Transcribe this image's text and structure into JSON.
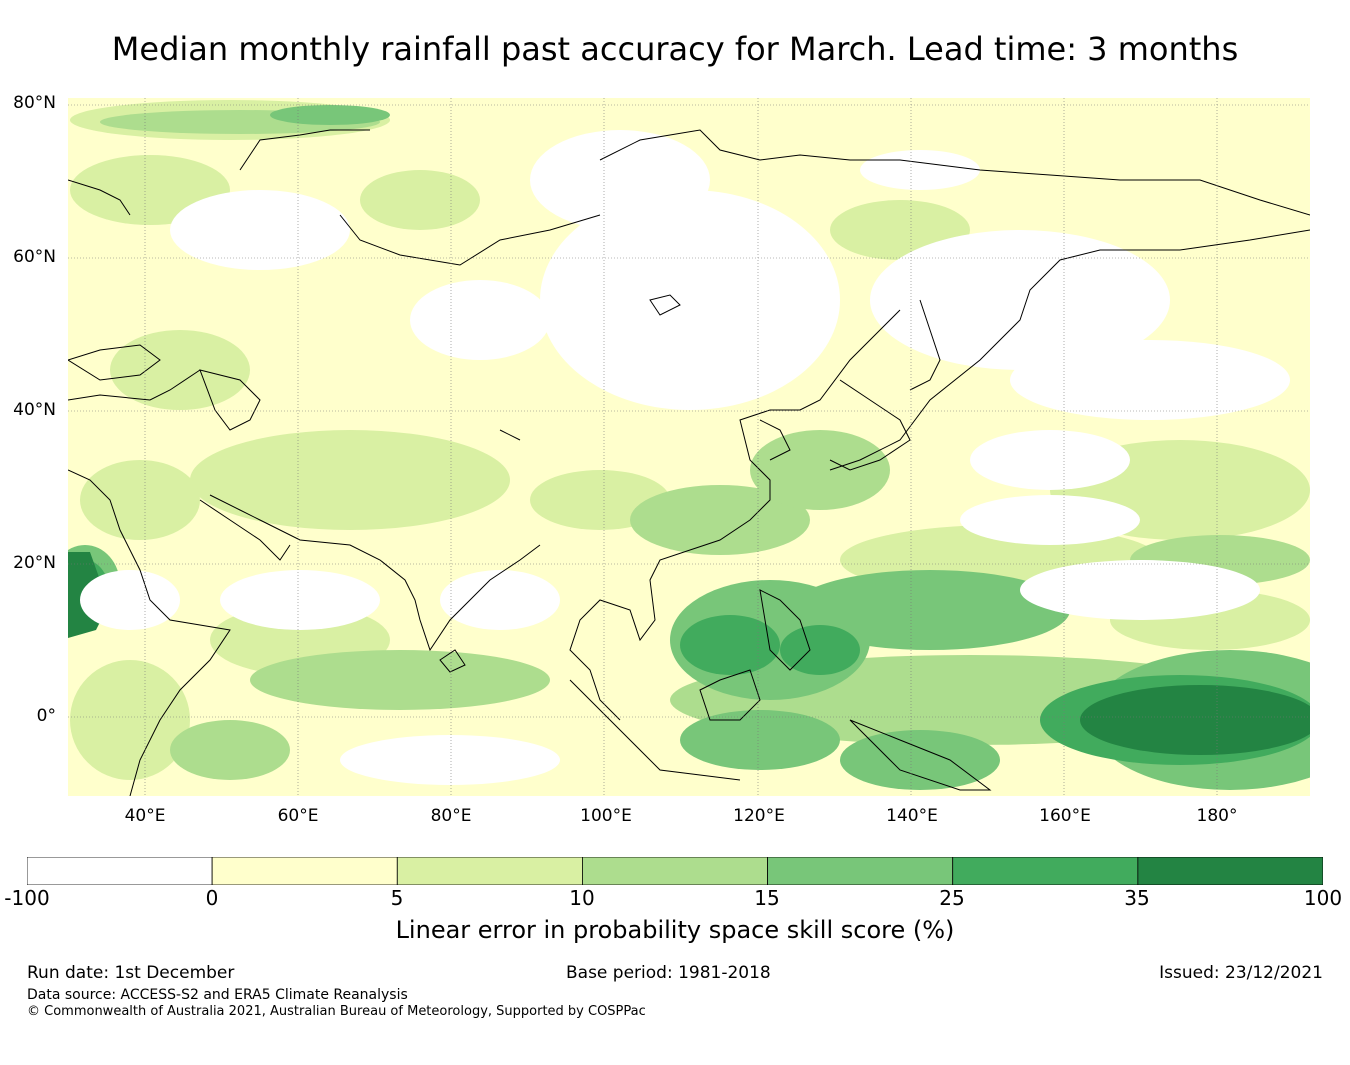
{
  "title": "Median monthly rainfall past accuracy for March. Lead time: 3 months",
  "map": {
    "lat_labels": [
      "80°N",
      "60°N",
      "40°N",
      "20°N",
      "0°"
    ],
    "lon_labels": [
      "40°E",
      "60°E",
      "80°E",
      "100°E",
      "120°E",
      "140°E",
      "160°E",
      "180°"
    ],
    "lon_range": [
      30,
      192
    ],
    "lat_range": [
      -10,
      81
    ]
  },
  "colorbar": {
    "label": "Linear error in probability space skill score (%)",
    "ticks": [
      "-100",
      "0",
      "5",
      "10",
      "15",
      "25",
      "35",
      "100"
    ],
    "bins": [
      {
        "range": "-100 to 0",
        "color": "#ffffff"
      },
      {
        "range": "0 to 5",
        "color": "#ffffcc"
      },
      {
        "range": "5 to 10",
        "color": "#d9f0a3"
      },
      {
        "range": "10 to 15",
        "color": "#addd8e"
      },
      {
        "range": "15 to 25",
        "color": "#78c679"
      },
      {
        "range": "25 to 35",
        "color": "#41ab5d"
      },
      {
        "range": "35 to 100",
        "color": "#238443"
      }
    ]
  },
  "footer": {
    "run_date": "Run date: 1st December",
    "base_period": "Base period: 1981-2018",
    "issued": "Issued: 23/12/2021",
    "data_source": "Data source: ACCESS-S2 and ERA5 Climate Reanalysis",
    "copyright": "© Commonwealth of Australia 2021, Australian Bureau of Meteorology, Supported by COSPPac"
  }
}
